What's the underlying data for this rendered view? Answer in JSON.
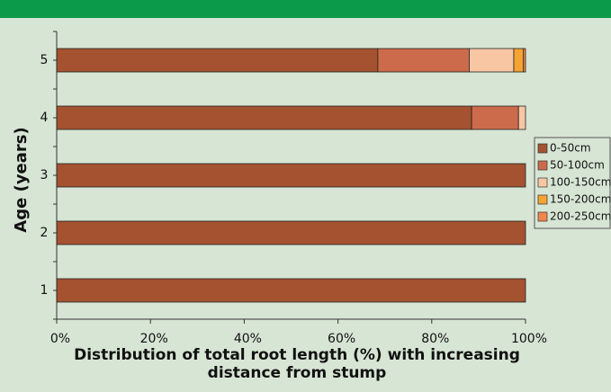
{
  "chart_data": {
    "type": "stacked-barh",
    "xlabel": "Distribution of total root length (%) with increasing distance from stump",
    "ylabel": "Age (years)",
    "categories": [
      "1",
      "2",
      "3",
      "4",
      "5"
    ],
    "series": [
      {
        "name": "0-50cm",
        "color": "#a4522f",
        "values": [
          100,
          100,
          100,
          88.5,
          68.5
        ]
      },
      {
        "name": "50-100cm",
        "color": "#cc6b4b",
        "values": [
          0,
          0,
          0,
          10,
          19.5
        ]
      },
      {
        "name": "100-150cm",
        "color": "#f9c6a4",
        "values": [
          0,
          0,
          0,
          1.5,
          9.5
        ]
      },
      {
        "name": "150-200cm",
        "color": "#f5a332",
        "values": [
          0,
          0,
          0,
          0,
          2
        ]
      },
      {
        "name": "200-250cm",
        "color": "#f0864a",
        "values": [
          0,
          0,
          0,
          0,
          0.5
        ]
      }
    ],
    "xlim": [
      0,
      100
    ],
    "xticks": [
      {
        "value": 0,
        "label": "0%"
      },
      {
        "value": 20,
        "label": "20%"
      },
      {
        "value": 40,
        "label": "40%"
      },
      {
        "value": 60,
        "label": "60%"
      },
      {
        "value": 80,
        "label": "80%"
      },
      {
        "value": 100,
        "label": "100%"
      }
    ],
    "legend": "right"
  }
}
